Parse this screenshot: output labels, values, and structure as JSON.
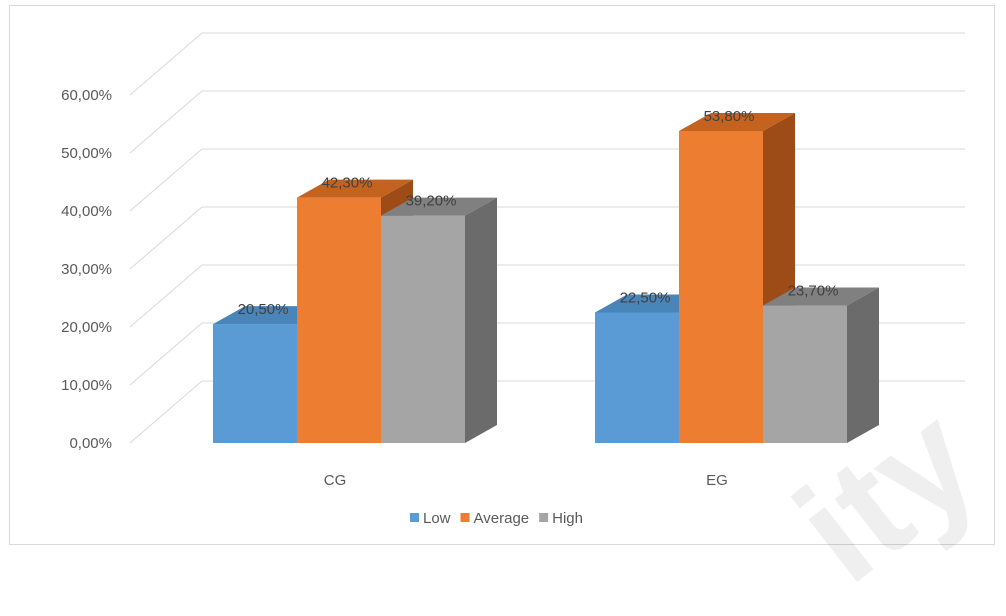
{
  "chart_data": {
    "type": "bar",
    "style": "3d-clustered-column",
    "categories": [
      "CG",
      "EG"
    ],
    "series": [
      {
        "name": "Low",
        "values": [
          20.5,
          22.5
        ],
        "labels": [
          "20,50%",
          "22,50%"
        ],
        "color": "#5b9bd5",
        "side_color": "#41719c",
        "top_color": "#4a85ba"
      },
      {
        "name": "Average",
        "values": [
          42.3,
          53.8
        ],
        "labels": [
          "42,30%",
          "53,80%"
        ],
        "color": "#ed7d31",
        "side_color": "#9e4c17",
        "top_color": "#c4631f"
      },
      {
        "name": "High",
        "values": [
          39.2,
          23.7
        ],
        "labels": [
          "39,20%",
          "23,70%"
        ],
        "color": "#a5a5a5",
        "side_color": "#6b6b6b",
        "top_color": "#808080"
      }
    ],
    "ylim": [
      0,
      60
    ],
    "yticks": [
      0,
      10,
      20,
      30,
      40,
      50,
      60
    ],
    "ytick_labels": [
      "0,00%",
      "10,00%",
      "20,00%",
      "30,00%",
      "40,00%",
      "50,00%",
      "60,00%"
    ],
    "grid": true,
    "legend_position": "bottom"
  },
  "watermark": "ity"
}
